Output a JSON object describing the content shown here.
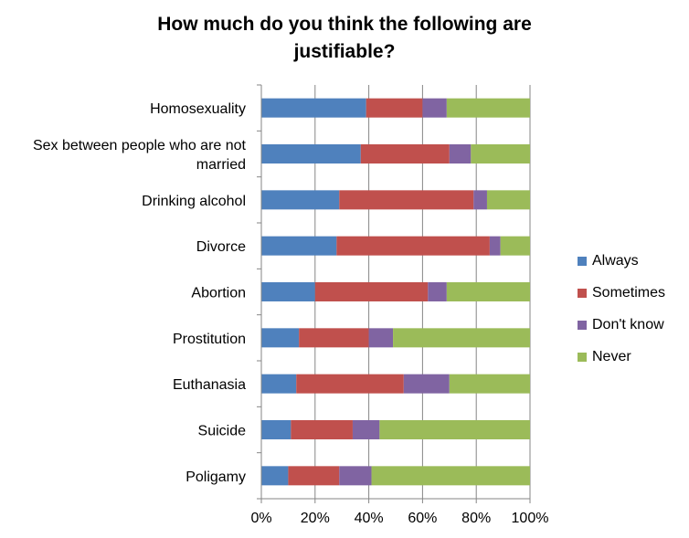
{
  "chart_data": {
    "type": "bar",
    "orientation": "horizontal",
    "stacked": "percent",
    "title_lines": [
      "How much do you think the following are",
      "justifiable?"
    ],
    "categories": [
      [
        "Homosexuality"
      ],
      [
        "Sex between people who are not",
        "married"
      ],
      [
        "Drinking alcohol"
      ],
      [
        "Divorce"
      ],
      [
        "Abortion"
      ],
      [
        "Prostitution"
      ],
      [
        "Euthanasia"
      ],
      [
        "Suicide"
      ],
      [
        "Poligamy"
      ]
    ],
    "series": [
      {
        "name": "Always",
        "color": "#4f81bd",
        "values": [
          39,
          37,
          29,
          28,
          20,
          14,
          13,
          11,
          10
        ]
      },
      {
        "name": "Sometimes",
        "color": "#c0504d",
        "values": [
          21,
          33,
          50,
          57,
          42,
          26,
          40,
          23,
          19
        ]
      },
      {
        "name": "Don't know",
        "color": "#8064a2",
        "values": [
          9,
          8,
          5,
          4,
          7,
          9,
          17,
          10,
          12
        ]
      },
      {
        "name": "Never",
        "color": "#9bbb59",
        "values": [
          31,
          22,
          16,
          11,
          31,
          51,
          30,
          56,
          59
        ]
      }
    ],
    "xlim": [
      0,
      100
    ],
    "xticks": [
      "0%",
      "20%",
      "40%",
      "60%",
      "80%",
      "100%"
    ],
    "grid": true,
    "legend_position": "right"
  }
}
